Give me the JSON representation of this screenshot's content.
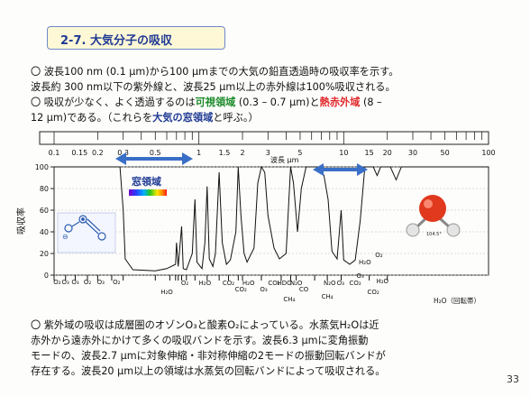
{
  "slide": {
    "title": "2-7. 大気分子の吸収",
    "intro_line1": "〇 波長100 nm (0.1 μm)から100 μmまでの大気の鉛直透過時の吸収率を示す。",
    "intro_line2": "波長約 300 nm以下の紫外線と、波長25 μm以上の赤外線は100%吸収される。",
    "intro_line3_a": "〇 吸収が少なく、よく透過するのは",
    "intro_line3_visible": "可視領域",
    "intro_line3_b": " (0.3 – 0.7 μm)と",
    "intro_line3_ir": "熱赤外域",
    "intro_line3_c": " (8 –",
    "intro_line4_a": "12 μm)である。（これらを",
    "intro_line4_window": "大気の窓領域",
    "intro_line4_b": "と呼ぶ。）",
    "bottom_line1": "〇 紫外域の吸収は成層圏のオゾンO₃と酸素O₂によっている。水蒸気H₂Oは近",
    "bottom_line2": "赤外から遠赤外にかけて多くの吸収バンドを示す。波長6.3 μmに変角振動",
    "bottom_line3": "モードの、波長2.7 μmに対象伸縮・非対称伸縮の2モードの振動回転バンドが",
    "bottom_line4": "存在する。波長20 μm以上の領域は水蒸気の回転バンドによって吸収される。",
    "page_number": "33"
  },
  "chart_data": {
    "type": "area",
    "x_scale": "log",
    "xlabel": "波長 μm",
    "ylabel": "吸収率",
    "x_ticks": [
      "0.1",
      "0.15",
      "0.2",
      "0.3",
      "0.5",
      "1",
      "1.5",
      "2",
      "3",
      "5",
      "10",
      "15",
      "20",
      "30",
      "50",
      "100"
    ],
    "y_ticks": [
      "0",
      "20",
      "40",
      "60",
      "80",
      "100"
    ],
    "ylim": [
      0,
      100
    ],
    "xlim": [
      0.1,
      100
    ],
    "window_label": "窓領域",
    "molecule_o3_label": "O₃",
    "water_angle_label": "104.5°",
    "h2o_rot_label": "H₂O（回転帯）",
    "series": [
      {
        "points": [
          [
            0.1,
            100
          ],
          [
            0.285,
            100
          ],
          [
            0.3,
            60
          ],
          [
            0.31,
            15
          ],
          [
            0.35,
            5
          ],
          [
            0.5,
            4
          ],
          [
            0.6,
            6
          ],
          [
            0.69,
            10
          ],
          [
            0.7,
            30
          ],
          [
            0.72,
            8
          ],
          [
            0.76,
            45
          ],
          [
            0.78,
            6
          ],
          [
            0.82,
            5
          ],
          [
            0.9,
            20
          ],
          [
            0.94,
            70
          ],
          [
            0.97,
            12
          ],
          [
            1.05,
            6
          ],
          [
            1.1,
            30
          ],
          [
            1.14,
            82
          ],
          [
            1.18,
            15
          ],
          [
            1.25,
            8
          ],
          [
            1.3,
            20
          ],
          [
            1.38,
            95
          ],
          [
            1.45,
            30
          ],
          [
            1.55,
            10
          ],
          [
            1.65,
            14
          ],
          [
            1.8,
            40
          ],
          [
            1.87,
            100
          ],
          [
            1.95,
            55
          ],
          [
            2.05,
            20
          ],
          [
            2.15,
            12
          ],
          [
            2.4,
            25
          ],
          [
            2.55,
            85
          ],
          [
            2.7,
            100
          ],
          [
            2.85,
            95
          ],
          [
            3.0,
            55
          ],
          [
            3.3,
            25
          ],
          [
            3.6,
            15
          ],
          [
            4.0,
            20
          ],
          [
            4.3,
            100
          ],
          [
            4.5,
            85
          ],
          [
            4.8,
            40
          ],
          [
            5.1,
            80
          ],
          [
            5.5,
            100
          ],
          [
            6.0,
            100
          ],
          [
            6.8,
            100
          ],
          [
            7.3,
            92
          ],
          [
            7.8,
            70
          ],
          [
            8.3,
            22
          ],
          [
            9.0,
            15
          ],
          [
            9.6,
            60
          ],
          [
            10.0,
            14
          ],
          [
            11.0,
            10
          ],
          [
            12.0,
            14
          ],
          [
            13.0,
            50
          ],
          [
            14.0,
            100
          ],
          [
            16.0,
            100
          ],
          [
            17.0,
            92
          ],
          [
            18.0,
            100
          ],
          [
            21.0,
            100
          ],
          [
            23.0,
            88
          ],
          [
            25.0,
            100
          ],
          [
            100,
            100
          ]
        ]
      }
    ],
    "band_labels": [
      "O₂",
      "O₃",
      "O₃",
      "O₂",
      "O₃",
      "O₂",
      "H₂O",
      "O₂",
      "H₂O",
      "CO₂",
      "CO₂",
      "H₂O",
      "O₃",
      "CO₂",
      "HDO",
      "N₂O",
      "CO",
      "CH₄",
      "N₂O",
      "O₃",
      "CH₄",
      "CO₂",
      "O₃",
      "H₂O",
      "CO₂",
      "O₂",
      "H₂O"
    ]
  }
}
